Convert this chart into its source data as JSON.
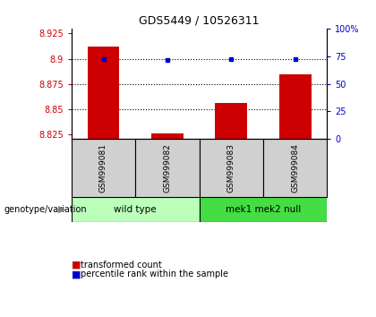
{
  "title": "GDS5449 / 10526311",
  "samples": [
    "GSM999081",
    "GSM999082",
    "GSM999083",
    "GSM999084"
  ],
  "bar_values": [
    8.912,
    8.8255,
    8.856,
    8.884
  ],
  "dot_values": [
    8.9,
    8.899,
    8.9,
    8.9
  ],
  "ylim_left": [
    8.82,
    8.93
  ],
  "ylim_right": [
    0,
    100
  ],
  "yticks_left": [
    8.825,
    8.85,
    8.875,
    8.9,
    8.925
  ],
  "yticks_right": [
    0,
    25,
    50,
    75,
    100
  ],
  "ytick_labels_left": [
    "8.825",
    "8.85",
    "8.875",
    "8.9",
    "8.925"
  ],
  "ytick_labels_right": [
    "0",
    "25",
    "50",
    "75",
    "100%"
  ],
  "hlines": [
    8.9,
    8.875,
    8.85
  ],
  "bar_color": "#cc0000",
  "dot_color": "#0000cc",
  "group1": {
    "label": "wild type",
    "indices": [
      0,
      1
    ]
  },
  "group2": {
    "label": "mek1 mek2 null",
    "indices": [
      2,
      3
    ]
  },
  "group_label": "genotype/variation",
  "legend_bar": "transformed count",
  "legend_dot": "percentile rank within the sample",
  "bar_width": 0.5,
  "background_color": "#ffffff",
  "plot_bg": "#ffffff",
  "sample_box_color": "#d0d0d0",
  "group1_color": "#bbffbb",
  "group2_color": "#44dd44",
  "left_tick_color": "#cc0000",
  "right_tick_color": "#0000cc"
}
